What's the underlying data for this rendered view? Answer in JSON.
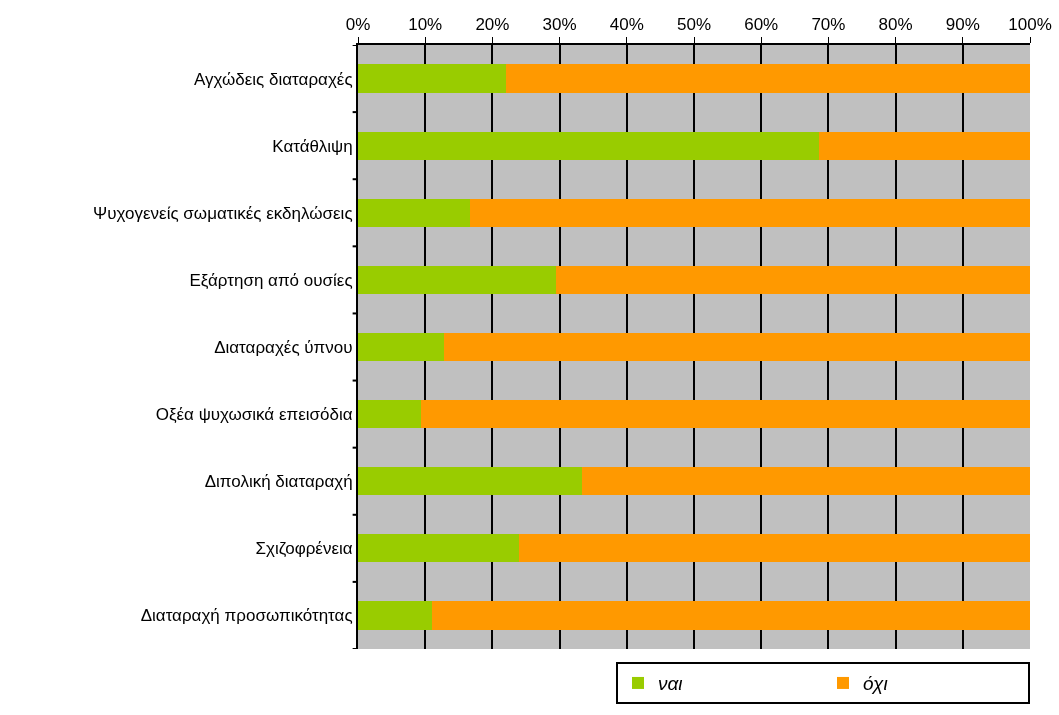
{
  "chart_data": {
    "type": "bar",
    "orientation": "horizontal",
    "stacked": true,
    "categories": [
      "Αγχώδεις διαταραχές",
      "Κατάθλιψη",
      "Ψυχογενείς σωματικές εκδηλώσεις",
      "Εξάρτηση από ουσίες",
      "Διαταραχές ύπνου",
      "Οξέα ψυχωσικά επεισόδια",
      "Διπολική διαταραχή",
      "Σχιζοφρένεια",
      "Διαταραχή προσωπικότητας"
    ],
    "series": [
      {
        "name": "ναι",
        "color": "#99cc00",
        "values": [
          22.0,
          68.6,
          16.6,
          29.5,
          12.8,
          9.3,
          33.3,
          24.0,
          11.0
        ]
      },
      {
        "name": "όχι",
        "color": "#ff9900",
        "values": [
          78.0,
          31.4,
          83.4,
          70.5,
          87.2,
          90.7,
          66.7,
          76.0,
          89.0
        ]
      }
    ],
    "xlim": [
      0,
      100
    ],
    "xticks": [
      {
        "value": 0,
        "label": "0%"
      },
      {
        "value": 10,
        "label": "10%"
      },
      {
        "value": 20,
        "label": "20%"
      },
      {
        "value": 30,
        "label": "30%"
      },
      {
        "value": 40,
        "label": "40%"
      },
      {
        "value": 50,
        "label": "50%"
      },
      {
        "value": 60,
        "label": "60%"
      },
      {
        "value": 70,
        "label": "70%"
      },
      {
        "value": 80,
        "label": "80%"
      },
      {
        "value": 90,
        "label": "90%"
      },
      {
        "value": 100,
        "label": "100%"
      }
    ],
    "grid": "x",
    "legend": "bottom right"
  }
}
